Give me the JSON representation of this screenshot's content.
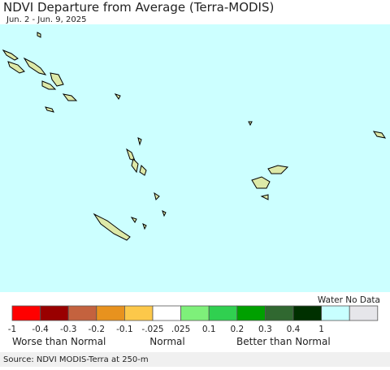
{
  "header": {
    "title": "NDVI Departure from Average (Terra-MODIS)",
    "subtitle": "Jun. 2 - Jun. 9, 2025"
  },
  "legend": {
    "colors": [
      "#ff0000",
      "#990000",
      "#c4623e",
      "#e8921e",
      "#fcc84a",
      "#ffffff",
      "#7ef07a",
      "#30d050",
      "#00a000",
      "#306830",
      "#003000",
      "#c8ffff",
      "#e6e6ea"
    ],
    "ticks": [
      "-1",
      "-0.4",
      "-0.3",
      "-0.2",
      "-0.1",
      "-.025",
      ".025",
      "0.1",
      "0.2",
      "0.3",
      "0.4",
      "1"
    ],
    "groups": [
      "Worse than Normal",
      "Normal",
      "Better than Normal"
    ],
    "water_no_data": "Water No Data"
  },
  "footer": {
    "source": "Source: NDVI MODIS-Terra at 250-m"
  }
}
